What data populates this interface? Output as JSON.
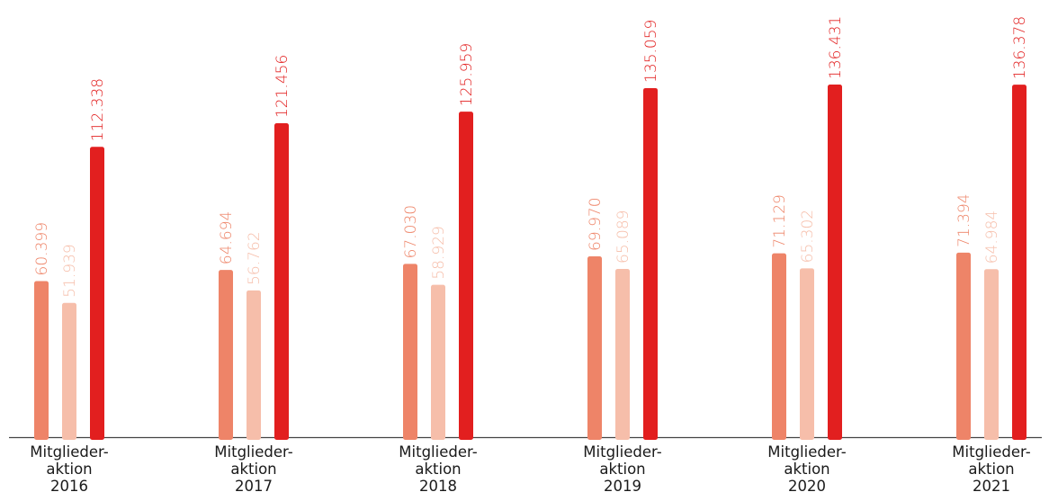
{
  "chart_data": {
    "type": "bar",
    "categories": [
      [
        "Mitglieder-",
        "aktion",
        "2016"
      ],
      [
        "Mitglieder-",
        "aktion",
        "2017"
      ],
      [
        "Mitglieder-",
        "aktion",
        "2018"
      ],
      [
        "Mitglieder-",
        "aktion",
        "2019"
      ],
      [
        "Mitglieder-",
        "aktion",
        "2020"
      ],
      [
        "Mitglieder-",
        "aktion",
        "2021"
      ]
    ],
    "series": [
      {
        "color": "#ee8468",
        "label_color": "#ee8468",
        "values": [
          60399,
          64694,
          67030,
          69970,
          71129,
          71394
        ],
        "labels": [
          "60.399",
          "64.694",
          "67.030",
          "69.970",
          "71.129",
          "71.394"
        ]
      },
      {
        "color": "#f6beaa",
        "label_color": "#f6beaa",
        "values": [
          51939,
          56762,
          58929,
          65089,
          65302,
          64984
        ],
        "labels": [
          "51.939",
          "56.762",
          "58.929",
          "65.089",
          "65.302",
          "64.984"
        ]
      },
      {
        "color": "#e21f1f",
        "label_color": "#e21f1f",
        "values": [
          112338,
          121456,
          125959,
          135059,
          136431,
          136378
        ],
        "labels": [
          "112.338",
          "121.456",
          "125.959",
          "135.059",
          "136.431",
          "136.378"
        ]
      }
    ],
    "ylim": [
      0,
      136431
    ],
    "grid": false,
    "baseline_color": "#444444"
  }
}
